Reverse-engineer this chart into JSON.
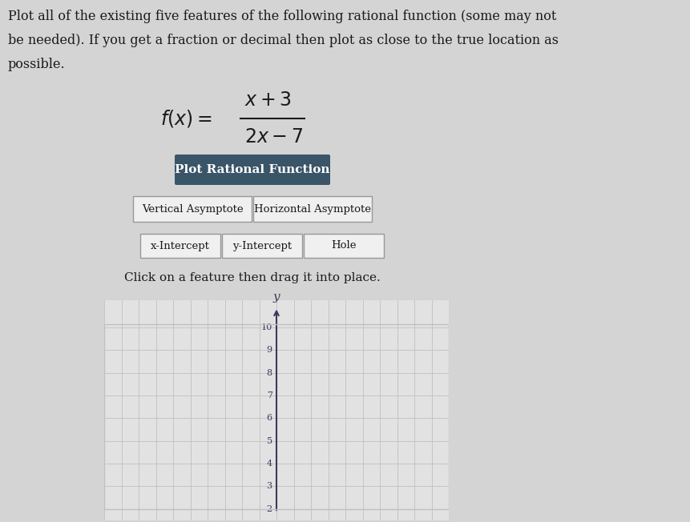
{
  "title_line1": "Plot all of the existing five features of the following rational function (some may not",
  "title_line2": "be needed). If you get a fraction or decimal then plot as close to the true location as",
  "title_line3": "possible.",
  "button_text": "Plot Rational Function",
  "button_bg": "#3a5568",
  "button_fg": "#ffffff",
  "row1_labels": [
    "Vertical Asymptote",
    "Horizontal Asymptote"
  ],
  "row2_labels": [
    "x-Intercept",
    "y-Intercept",
    "Hole"
  ],
  "instruction": "Click on a feature then drag it into place.",
  "bg_color": "#d4d4d4",
  "grid_bg": "#e2e2e2",
  "grid_line_color": "#c0c0c0",
  "axis_color": "#3a3a5c",
  "tick_label_color": "#3a3a5c",
  "y_axis_label": "y",
  "y_ticks": [
    2,
    3,
    4,
    5,
    6,
    7,
    8,
    9,
    10
  ],
  "graph_xlim": [
    -10,
    10
  ],
  "graph_ylim": [
    1.5,
    11.2
  ],
  "box_color": "#f0f0f0",
  "box_edge_color": "#999999",
  "text_color": "#1a1a1a",
  "font_family": "DejaVu Serif"
}
